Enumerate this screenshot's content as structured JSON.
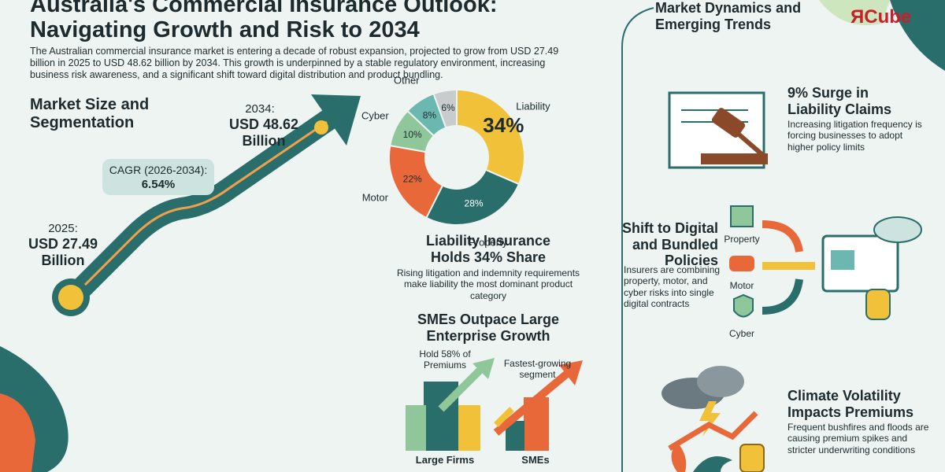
{
  "header": {
    "title_lines": [
      "Australia's Commercial Insurance Outlook:",
      "Navigating Growth and Risk to 2034"
    ],
    "intro": "The Australian commercial insurance market is entering a decade of robust expansion, projected to grow from USD 27.49 billion in 2025 to USD 48.62 billion by 2034. This growth is underpinned by a stable regulatory environment, increasing business risk awareness, and a significant shift toward digital distribution and product bundling."
  },
  "logo": "ЯCube",
  "market_size": {
    "heading": "Market Size and Segmentation",
    "end_year": "2034:",
    "end_value": "USD 48.62 Billion",
    "cagr_label": "CAGR (2026-2034):",
    "cagr_value": "6.54%",
    "start_year": "2025:",
    "start_value": "USD 27.49 Billion"
  },
  "chart_data": {
    "type": "pie",
    "categories": [
      "Liability",
      "Property",
      "Motor",
      "Cyber",
      "Other",
      null
    ],
    "values": [
      34,
      28,
      22,
      10,
      8,
      6
    ],
    "value_labels": [
      "34%",
      "28%",
      "22%",
      "10%",
      "8%",
      "6%"
    ],
    "colors": [
      "#f2c13a",
      "#2a6e6c",
      "#e8683a",
      "#8fc79a",
      "#6cb8b0",
      "#c9cccc"
    ]
  },
  "liability_share": {
    "heading": "Liability Insurance Holds 34% Share",
    "text": "Rising litigation and indemnity requirements make liability the most dominant product category"
  },
  "sme": {
    "heading": "SMEs Outpace Large Enterprise Growth",
    "large_note": "Hold 58% of Premiums",
    "sme_note": "Fastest-growing segment",
    "large_label": "Large Firms",
    "sme_label": "SMEs"
  },
  "trends": {
    "heading": "Market Dynamics and Emerging Trends",
    "items": [
      {
        "heading": "9% Surge in Liability Claims",
        "text": "Increasing litigation frequency is forcing businesses to adopt higher policy limits"
      },
      {
        "heading": "Shift to Digital and Bundled Policies",
        "text": "Insurers are combining property, motor, and cyber risks into single digital contracts"
      },
      {
        "heading": "Climate Volatility Impacts Premiums",
        "text": "Frequent bushfires and floods are causing premium spikes and stricter underwriting conditions"
      }
    ],
    "icons": [
      "Property",
      "Motor",
      "Cyber"
    ]
  }
}
